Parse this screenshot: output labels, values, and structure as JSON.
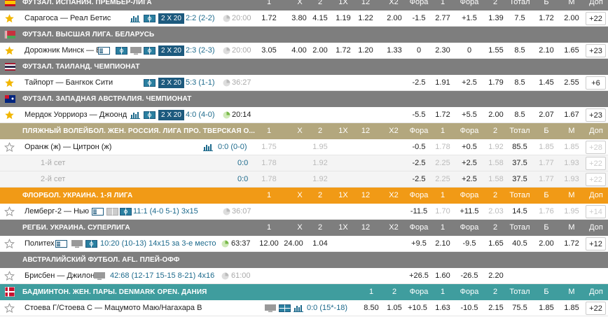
{
  "columns": [
    "1",
    "X",
    "2",
    "1X",
    "12",
    "X2",
    "Фора",
    "1",
    "Фора",
    "2",
    "Тотал",
    "Б",
    "М",
    "Доп"
  ],
  "badminton_columns": [
    "1",
    "2",
    "Фора",
    "1",
    "Фора",
    "2",
    "Тотал",
    "Б",
    "М",
    "Доп"
  ],
  "x20_label": "2 X 20",
  "groups": [
    {
      "title": "ФУТЗАЛ. ИСПАНИЯ. ПРЕМЬЕР-ЛИГА",
      "show_columns": false,
      "rows": [
        {
          "name": "Сарагоса — Реал Бетис",
          "score": "2:2 (2-2)",
          "time": "20:00",
          "odds": [
            "1.72",
            "3.80",
            "4.15",
            "1.19",
            "1.22",
            "2.00",
            "-1.5",
            "2.77",
            "+1.5",
            "1.39",
            "7.5",
            "1.72",
            "2.00",
            "+22"
          ]
        }
      ]
    },
    {
      "title": "ФУТЗАЛ. ВЫСШАЯ ЛИГА. БЕЛАРУСЬ",
      "rows": [
        {
          "name": "Дорожник Минск — Б",
          "score": "2:3 (2-3)",
          "time": "20:00",
          "odds": [
            "3.05",
            "4.00",
            "2.00",
            "1.72",
            "1.20",
            "1.33",
            "0",
            "2.30",
            "0",
            "1.55",
            "8.5",
            "2.10",
            "1.65",
            "+23"
          ]
        }
      ]
    },
    {
      "title": "ФУТЗАЛ. ТАИЛАНД. ЧЕМПИОНАТ",
      "rows": [
        {
          "name": "Тайпорт — Бангкок Сити",
          "score": "5:3 (1-1)",
          "time": "36:27",
          "odds": [
            "",
            "",
            "",
            "",
            "",
            "",
            "-2.5",
            "1.91",
            "+2.5",
            "1.79",
            "8.5",
            "1.45",
            "2.55",
            "+6"
          ]
        }
      ]
    },
    {
      "title": "ФУТЗАЛ. ЗАПАДНАЯ АВСТРАЛИЯ. ЧЕМПИОНАТ",
      "rows": [
        {
          "name": "Мердок Уорриорз — Джоонд",
          "score": "4:0 (4-0)",
          "time": "20:14",
          "odds": [
            "",
            "",
            "",
            "",
            "",
            "",
            "-5.5",
            "1.72",
            "+5.5",
            "2.00",
            "8.5",
            "2.07",
            "1.67",
            "+23"
          ]
        }
      ]
    },
    {
      "title": "ПЛЯЖНЫЙ ВОЛЕЙБОЛ. ЖЕН. РОССИЯ. ЛИГА ПРО. ТВЕРСКАЯ О...",
      "rows": [
        {
          "name": "Оранж (ж) — Цитрон (ж)",
          "score": "0:0 (0-0)",
          "odds": [
            "1.75",
            "",
            "1.95",
            "",
            "",
            "",
            "-0.5",
            "1.78",
            "+0.5",
            "1.92",
            "85.5",
            "1.85",
            "1.85",
            "+28"
          ]
        },
        {
          "name": "1-й сет",
          "score": "0:0",
          "odds": [
            "1.78",
            "",
            "1.92",
            "",
            "",
            "",
            "-2.5",
            "2.25",
            "+2.5",
            "1.58",
            "37.5",
            "1.77",
            "1.93",
            "+22"
          ]
        },
        {
          "name": "2-й сет",
          "score": "0:0",
          "odds": [
            "1.78",
            "",
            "1.92",
            "",
            "",
            "",
            "-2.5",
            "2.25",
            "+2.5",
            "1.58",
            "37.5",
            "1.77",
            "1.93",
            "+22"
          ]
        }
      ]
    },
    {
      "title": "ФЛОРБОЛ. УКРАИНА. 1-Я ЛИГА",
      "rows": [
        {
          "name": "Лемберг-2 — Нью",
          "score": "11:1 (4-0 5-1) 3x15",
          "time": "36:07",
          "odds": [
            "",
            "",
            "",
            "",
            "",
            "",
            "-11.5",
            "1.70",
            "+11.5",
            "2.03",
            "14.5",
            "1.76",
            "1.95",
            "+14"
          ]
        }
      ]
    },
    {
      "title": "РЕГБИ. УКРАИНА. СУПЕРЛИГА",
      "rows": [
        {
          "name": "Политех",
          "score": "10:20 (10-13) 14x15 за 3-е место",
          "time": "63:37",
          "odds": [
            "12.00",
            "24.00",
            "1.04",
            "",
            "",
            "",
            "+9.5",
            "2.10",
            "-9.5",
            "1.65",
            "40.5",
            "2.00",
            "1.72",
            "+12"
          ]
        }
      ]
    },
    {
      "title": "АВСТРАЛИЙСКИЙ ФУТБОЛ. AFL. ПЛЕЙ-ОФФ",
      "rows": [
        {
          "name": "Брисбен — Джилон",
          "score": "42:68 (12-17 15-15 8-21) 4x16",
          "time": "61:00",
          "odds": [
            "",
            "",
            "",
            "",
            "",
            "",
            "+26.5",
            "1.60",
            "-26.5",
            "2.20",
            "",
            "",
            "",
            ""
          ]
        }
      ]
    },
    {
      "title": "БАДМИНТОН. ЖЕН. ПАРЫ. DENMARK OPEN. ДАНИЯ",
      "rows": [
        {
          "name": "Стоева Г/Стоева С — Мацумото Маю/Нагахара В",
          "score": "0:0 (15*-18)",
          "odds": [
            "8.50",
            "1.05",
            "+10.5",
            "1.63",
            "-10.5",
            "2.15",
            "75.5",
            "1.85",
            "1.85",
            "+22"
          ]
        }
      ]
    }
  ],
  "colors": {
    "gray": "#7e7e7e",
    "tan": "#b3a77e",
    "orange": "#f19a16",
    "teal": "#3f9d9e",
    "badge": "#1d5a7e",
    "score": "#1d6a8c",
    "star": "#f2b600"
  },
  "icons": [
    "star-icon",
    "stats-icon",
    "tv-icon",
    "field-icon",
    "clock-icon",
    "flag-icon"
  ]
}
